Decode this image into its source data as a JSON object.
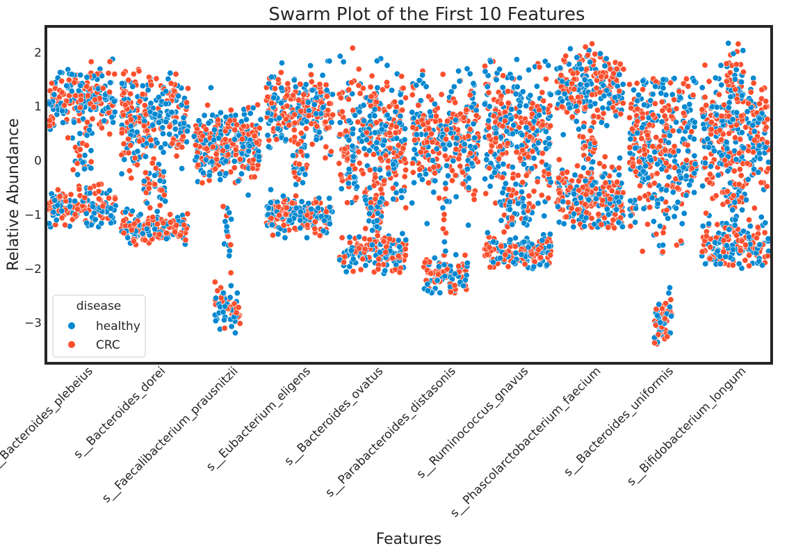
{
  "chart_data": {
    "type": "scatter",
    "subtype": "swarm",
    "title": "Swarm Plot of the First 10 Features",
    "xlabel": "Features",
    "ylabel": "Relative Abundance",
    "ylim": [
      -3.75,
      2.48
    ],
    "yticks": [
      -3,
      -2,
      -1,
      0,
      1,
      2
    ],
    "ytick_labels": [
      "−3",
      "−2",
      "−1",
      "0",
      "1",
      "2"
    ],
    "grid": false,
    "legend": {
      "title": "disease",
      "position": "lower-left",
      "entries": [
        {
          "name": "healthy",
          "color": "#0287d0"
        },
        {
          "name": "CRC",
          "color": "#fb4f2d"
        }
      ]
    },
    "categories": [
      "s__Bacteroides_plebeius",
      "s__Bacteroides_dorei",
      "s__Faecalibacterium_prausnitzii",
      "s__Eubacterium_eligens",
      "s__Bacteroides_ovatus",
      "s__Parabacteroides_distasonis",
      "s__Ruminococcus_gnavus",
      "s__Phascolarctobacterium_faecium",
      "s__Bacteroides_uniformis",
      "s__Bifidobacterium_longum"
    ],
    "distributions": [
      {
        "clusters": [
          {
            "center": 1.15,
            "spread": 0.7,
            "count": 230,
            "halfwidth": 0.92
          },
          {
            "center": -0.85,
            "spread": 0.38,
            "count": 150,
            "halfwidth": 0.92
          },
          {
            "center": 0.05,
            "spread": 0.45,
            "count": 22,
            "halfwidth": 0.25
          }
        ],
        "min": -1.25,
        "max": 1.88
      },
      {
        "clusters": [
          {
            "center": 0.75,
            "spread": 0.95,
            "count": 280,
            "halfwidth": 0.92
          },
          {
            "center": -1.25,
            "spread": 0.3,
            "count": 150,
            "halfwidth": 0.92
          },
          {
            "center": -0.45,
            "spread": 0.45,
            "count": 40,
            "halfwidth": 0.3
          }
        ],
        "min": -1.58,
        "max": 1.75
      },
      {
        "clusters": [
          {
            "center": 0.3,
            "spread": 0.75,
            "count": 300,
            "halfwidth": 0.92
          },
          {
            "center": -2.75,
            "spread": 0.45,
            "count": 60,
            "halfwidth": 0.35
          },
          {
            "center": -1.5,
            "spread": 0.8,
            "count": 18,
            "halfwidth": 0.12
          }
        ],
        "min": -3.2,
        "max": 1.55
      },
      {
        "clusters": [
          {
            "center": 0.95,
            "spread": 0.75,
            "count": 250,
            "halfwidth": 0.92
          },
          {
            "center": -1.0,
            "spread": 0.4,
            "count": 180,
            "halfwidth": 0.92
          },
          {
            "center": -0.05,
            "spread": 0.5,
            "count": 28,
            "halfwidth": 0.2
          }
        ],
        "min": -1.45,
        "max": 2.05
      },
      {
        "clusters": [
          {
            "center": 0.4,
            "spread": 1.3,
            "count": 330,
            "halfwidth": 0.92
          },
          {
            "center": -1.7,
            "spread": 0.45,
            "count": 150,
            "halfwidth": 0.92
          },
          {
            "center": -0.9,
            "spread": 0.5,
            "count": 35,
            "halfwidth": 0.25
          }
        ],
        "min": -2.1,
        "max": 2.13
      },
      {
        "clusters": [
          {
            "center": 0.4,
            "spread": 1.15,
            "count": 300,
            "halfwidth": 0.92
          },
          {
            "center": -2.12,
            "spread": 0.4,
            "count": 100,
            "halfwidth": 0.62
          },
          {
            "center": -1.2,
            "spread": 0.7,
            "count": 10,
            "halfwidth": 0.08
          }
        ],
        "min": -2.48,
        "max": 1.7
      },
      {
        "clusters": [
          {
            "center": 0.45,
            "spread": 1.5,
            "count": 330,
            "halfwidth": 0.92
          },
          {
            "center": -1.7,
            "spread": 0.35,
            "count": 140,
            "halfwidth": 0.92
          },
          {
            "center": -0.9,
            "spread": 0.6,
            "count": 45,
            "halfwidth": 0.35
          }
        ],
        "min": -2.0,
        "max": 1.88
      },
      {
        "clusters": [
          {
            "center": 1.35,
            "spread": 0.75,
            "count": 230,
            "halfwidth": 0.92
          },
          {
            "center": -0.7,
            "spread": 0.75,
            "count": 250,
            "halfwidth": 0.92
          },
          {
            "center": 0.35,
            "spread": 0.5,
            "count": 30,
            "halfwidth": 0.2
          }
        ],
        "min": -1.25,
        "max": 2.17
      },
      {
        "clusters": [
          {
            "center": 0.25,
            "spread": 1.6,
            "count": 380,
            "halfwidth": 0.92
          },
          {
            "center": -2.95,
            "spread": 0.55,
            "count": 60,
            "halfwidth": 0.25
          },
          {
            "center": -1.6,
            "spread": 0.3,
            "count": 3,
            "halfwidth": 0.04
          }
        ],
        "min": -3.45,
        "max": 1.52
      },
      {
        "clusters": [
          {
            "center": 0.45,
            "spread": 1.25,
            "count": 300,
            "halfwidth": 0.92
          },
          {
            "center": -1.6,
            "spread": 0.45,
            "count": 170,
            "halfwidth": 0.92
          },
          {
            "center": -0.75,
            "spread": 0.5,
            "count": 35,
            "halfwidth": 0.3
          },
          {
            "center": 1.55,
            "spread": 0.8,
            "count": 45,
            "halfwidth": 0.25
          }
        ],
        "min": -2.0,
        "max": 2.2
      }
    ]
  }
}
